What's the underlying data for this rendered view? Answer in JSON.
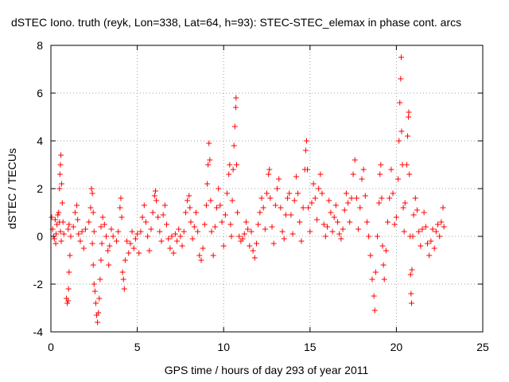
{
  "chart_data": {
    "type": "scatter",
    "title": "dSTEC Iono. truth (reyk, Lon=338, Lat=64, h=93): STEC-STEC_elemax in phase cont. arcs",
    "xlabel": "GPS time / hours of day 293 of year 2011",
    "ylabel": "dSTEC  / TECUs",
    "xlim": [
      0,
      25
    ],
    "ylim": [
      -4,
      8
    ],
    "xticks": [
      0,
      5,
      10,
      15,
      20,
      25
    ],
    "yticks": [
      -4,
      -2,
      0,
      2,
      4,
      6,
      8
    ],
    "grid": true,
    "marker": "+",
    "marker_color": "#ff0000",
    "series": [
      {
        "values_note_only_for_reader": "",
        "points": [
          [
            0.05,
            0.8
          ],
          [
            0.1,
            0.3
          ],
          [
            0.15,
            0.0
          ],
          [
            0.2,
            -0.1
          ],
          [
            0.3,
            0.1
          ],
          [
            0.35,
            0.5
          ],
          [
            0.4,
            0.9
          ],
          [
            0.45,
            1.0
          ],
          [
            0.5,
            0.6
          ],
          [
            0.55,
            0.2
          ],
          [
            0.6,
            -0.2
          ],
          [
            0.25,
            0.7
          ],
          [
            0.28,
            -0.3
          ],
          [
            0.5,
            2.0
          ],
          [
            0.52,
            2.6
          ],
          [
            0.55,
            3.0
          ],
          [
            0.58,
            3.4
          ],
          [
            0.62,
            2.2
          ],
          [
            0.66,
            1.4
          ],
          [
            0.7,
            0.6
          ],
          [
            0.75,
            0.1
          ],
          [
            0.9,
            -2.6
          ],
          [
            0.95,
            -2.8
          ],
          [
            1.0,
            -2.7
          ],
          [
            1.02,
            -2.2
          ],
          [
            1.05,
            -1.5
          ],
          [
            1.1,
            -0.8
          ],
          [
            1.15,
            0.0
          ],
          [
            1.0,
            0.3
          ],
          [
            1.05,
            0.5
          ],
          [
            1.3,
            0.4
          ],
          [
            1.4,
            1.0
          ],
          [
            1.5,
            1.3
          ],
          [
            1.55,
            0.7
          ],
          [
            1.6,
            0.1
          ],
          [
            1.7,
            -0.2
          ],
          [
            1.8,
            0.2
          ],
          [
            1.9,
            -0.5
          ],
          [
            2.0,
            0.3
          ],
          [
            2.2,
            0.6
          ],
          [
            2.3,
            1.2
          ],
          [
            2.35,
            2.0
          ],
          [
            2.4,
            1.8
          ],
          [
            2.45,
            1.0
          ],
          [
            2.5,
            0.2
          ],
          [
            2.4,
            -0.3
          ],
          [
            2.45,
            -1.2
          ],
          [
            2.5,
            -2.0
          ],
          [
            2.55,
            -2.3
          ],
          [
            2.6,
            -2.8
          ],
          [
            2.65,
            -3.3
          ],
          [
            2.7,
            -3.6
          ],
          [
            2.75,
            -3.2
          ],
          [
            2.8,
            -2.6
          ],
          [
            2.85,
            -1.8
          ],
          [
            2.9,
            -1.0
          ],
          [
            2.95,
            -0.3
          ],
          [
            2.9,
            0.4
          ],
          [
            3.0,
            0.8
          ],
          [
            3.1,
            0.5
          ],
          [
            3.2,
            0.0
          ],
          [
            3.3,
            -0.6
          ],
          [
            3.35,
            -1.2
          ],
          [
            3.4,
            -0.4
          ],
          [
            3.5,
            0.3
          ],
          [
            3.6,
            0.0
          ],
          [
            3.8,
            -0.2
          ],
          [
            3.9,
            0.2
          ],
          [
            4.0,
            1.2
          ],
          [
            4.05,
            1.6
          ],
          [
            4.1,
            0.8
          ],
          [
            4.15,
            -1.5
          ],
          [
            4.2,
            -1.8
          ],
          [
            4.25,
            -2.2
          ],
          [
            4.3,
            -1.0
          ],
          [
            4.4,
            -0.2
          ],
          [
            4.5,
            -0.7
          ],
          [
            4.6,
            -0.3
          ],
          [
            4.7,
            0.2
          ],
          [
            4.8,
            -0.5
          ],
          [
            4.9,
            -0.1
          ],
          [
            5.0,
            0.1
          ],
          [
            5.1,
            -0.7
          ],
          [
            5.2,
            0.2
          ],
          [
            5.3,
            0.8
          ],
          [
            5.4,
            1.3
          ],
          [
            5.5,
            0.6
          ],
          [
            5.6,
            0.0
          ],
          [
            5.7,
            -0.6
          ],
          [
            5.8,
            0.3
          ],
          [
            5.9,
            1.0
          ],
          [
            6.0,
            1.7
          ],
          [
            6.05,
            1.9
          ],
          [
            6.1,
            1.5
          ],
          [
            6.2,
            0.8
          ],
          [
            6.3,
            0.2
          ],
          [
            6.4,
            -0.2
          ],
          [
            6.5,
            0.9
          ],
          [
            6.6,
            1.3
          ],
          [
            6.7,
            0.5
          ],
          [
            6.8,
            -0.1
          ],
          [
            6.9,
            -0.5
          ],
          [
            7.0,
            0.0
          ],
          [
            7.1,
            -0.7
          ],
          [
            7.2,
            0.1
          ],
          [
            7.3,
            -0.2
          ],
          [
            7.4,
            0.3
          ],
          [
            7.5,
            0.0
          ],
          [
            7.6,
            -0.4
          ],
          [
            7.7,
            0.2
          ],
          [
            7.8,
            1.0
          ],
          [
            7.9,
            1.5
          ],
          [
            8.0,
            1.7
          ],
          [
            8.05,
            1.2
          ],
          [
            8.1,
            0.6
          ],
          [
            8.2,
            -0.1
          ],
          [
            8.3,
            0.4
          ],
          [
            8.4,
            1.0
          ],
          [
            8.5,
            0.2
          ],
          [
            8.6,
            -0.8
          ],
          [
            8.7,
            -1.0
          ],
          [
            8.8,
            -0.5
          ],
          [
            8.9,
            0.5
          ],
          [
            9.0,
            1.3
          ],
          [
            9.05,
            2.2
          ],
          [
            9.1,
            3.0
          ],
          [
            9.15,
            3.9
          ],
          [
            9.2,
            3.2
          ],
          [
            9.25,
            1.5
          ],
          [
            9.3,
            0.2
          ],
          [
            9.4,
            -0.8
          ],
          [
            9.5,
            0.4
          ],
          [
            9.6,
            1.2
          ],
          [
            9.7,
            2.0
          ],
          [
            9.8,
            1.3
          ],
          [
            9.9,
            0.6
          ],
          [
            10.0,
            -0.4
          ],
          [
            10.1,
            0.9
          ],
          [
            10.2,
            1.8
          ],
          [
            10.3,
            2.6
          ],
          [
            10.35,
            3.0
          ],
          [
            10.4,
            0.5
          ],
          [
            10.45,
            0.0
          ],
          [
            10.5,
            1.5
          ],
          [
            10.55,
            2.8
          ],
          [
            10.6,
            3.8
          ],
          [
            10.65,
            4.6
          ],
          [
            10.7,
            5.4
          ],
          [
            10.72,
            5.8
          ],
          [
            10.75,
            3.0
          ],
          [
            10.8,
            1.0
          ],
          [
            10.9,
            0.0
          ],
          [
            11.0,
            -0.2
          ],
          [
            11.1,
            -0.1
          ],
          [
            11.2,
            0.1
          ],
          [
            11.3,
            0.6
          ],
          [
            11.4,
            0.3
          ],
          [
            11.5,
            -0.4
          ],
          [
            11.6,
            0.2
          ],
          [
            11.7,
            -0.6
          ],
          [
            11.8,
            -0.9
          ],
          [
            11.9,
            -0.3
          ],
          [
            12.0,
            0.5
          ],
          [
            12.1,
            1.0
          ],
          [
            12.2,
            1.6
          ],
          [
            12.3,
            1.2
          ],
          [
            12.4,
            0.3
          ],
          [
            12.5,
            1.8
          ],
          [
            12.6,
            2.6
          ],
          [
            12.65,
            2.8
          ],
          [
            12.7,
            1.6
          ],
          [
            12.8,
            0.4
          ],
          [
            12.9,
            -0.3
          ],
          [
            13.0,
            1.3
          ],
          [
            13.1,
            2.0
          ],
          [
            13.2,
            2.4
          ],
          [
            13.3,
            1.2
          ],
          [
            13.4,
            0.2
          ],
          [
            13.5,
            -0.1
          ],
          [
            13.6,
            0.9
          ],
          [
            13.7,
            1.6
          ],
          [
            13.8,
            1.8
          ],
          [
            13.9,
            0.9
          ],
          [
            14.0,
            0.1
          ],
          [
            14.1,
            1.5
          ],
          [
            14.2,
            2.5
          ],
          [
            14.3,
            1.8
          ],
          [
            14.4,
            0.6
          ],
          [
            14.5,
            -0.2
          ],
          [
            14.6,
            1.2
          ],
          [
            14.7,
            2.8
          ],
          [
            14.75,
            3.6
          ],
          [
            14.8,
            4.0
          ],
          [
            14.85,
            2.8
          ],
          [
            14.9,
            1.2
          ],
          [
            15.0,
            0.2
          ],
          [
            15.1,
            1.4
          ],
          [
            15.2,
            2.2
          ],
          [
            15.3,
            1.6
          ],
          [
            15.4,
            0.7
          ],
          [
            15.5,
            2.0
          ],
          [
            15.6,
            2.6
          ],
          [
            15.7,
            1.8
          ],
          [
            15.8,
            0.5
          ],
          [
            15.9,
            0.0
          ],
          [
            16.0,
            0.4
          ],
          [
            16.1,
            1.5
          ],
          [
            16.2,
            1.0
          ],
          [
            16.3,
            0.2
          ],
          [
            16.4,
            0.8
          ],
          [
            16.5,
            1.3
          ],
          [
            16.6,
            0.6
          ],
          [
            16.7,
            0.1
          ],
          [
            16.8,
            -0.1
          ],
          [
            16.9,
            0.3
          ],
          [
            17.0,
            1.1
          ],
          [
            17.1,
            1.8
          ],
          [
            17.2,
            1.4
          ],
          [
            17.3,
            0.6
          ],
          [
            17.4,
            1.6
          ],
          [
            17.5,
            2.6
          ],
          [
            17.6,
            3.2
          ],
          [
            17.7,
            1.6
          ],
          [
            17.8,
            0.3
          ],
          [
            17.9,
            1.2
          ],
          [
            18.0,
            2.4
          ],
          [
            18.1,
            2.8
          ],
          [
            18.2,
            1.7
          ],
          [
            18.3,
            0.6
          ],
          [
            18.4,
            0.0
          ],
          [
            18.5,
            -0.8
          ],
          [
            18.6,
            -1.8
          ],
          [
            18.7,
            -2.5
          ],
          [
            18.75,
            -3.1
          ],
          [
            18.8,
            -1.5
          ],
          [
            18.9,
            0.0
          ],
          [
            19.0,
            1.4
          ],
          [
            19.05,
            2.6
          ],
          [
            19.1,
            3.0
          ],
          [
            19.15,
            1.6
          ],
          [
            19.2,
            -0.4
          ],
          [
            19.25,
            -1.2
          ],
          [
            19.3,
            -1.8
          ],
          [
            19.4,
            -0.6
          ],
          [
            19.5,
            0.6
          ],
          [
            19.6,
            1.6
          ],
          [
            19.7,
            2.8
          ],
          [
            19.8,
            1.8
          ],
          [
            19.9,
            0.5
          ],
          [
            20.0,
            0.8
          ],
          [
            20.1,
            2.4
          ],
          [
            20.15,
            4.0
          ],
          [
            20.2,
            5.6
          ],
          [
            20.25,
            6.6
          ],
          [
            20.28,
            7.5
          ],
          [
            20.3,
            4.4
          ],
          [
            20.35,
            3.0
          ],
          [
            20.4,
            1.2
          ],
          [
            20.45,
            0.2
          ],
          [
            20.5,
            1.4
          ],
          [
            20.6,
            3.0
          ],
          [
            20.65,
            4.2
          ],
          [
            20.7,
            5.0
          ],
          [
            20.72,
            5.2
          ],
          [
            20.75,
            2.6
          ],
          [
            20.8,
            0.0
          ],
          [
            20.82,
            -1.6
          ],
          [
            20.85,
            -2.4
          ],
          [
            20.88,
            -2.8
          ],
          [
            20.9,
            -1.4
          ],
          [
            20.95,
            0.0
          ],
          [
            21.0,
            0.9
          ],
          [
            21.1,
            1.6
          ],
          [
            21.2,
            1.1
          ],
          [
            21.3,
            0.2
          ],
          [
            21.4,
            -0.4
          ],
          [
            21.5,
            0.3
          ],
          [
            21.6,
            1.0
          ],
          [
            21.7,
            0.4
          ],
          [
            21.8,
            -0.3
          ],
          [
            21.9,
            -0.8
          ],
          [
            22.0,
            -0.2
          ],
          [
            22.1,
            0.3
          ],
          [
            22.2,
            -0.5
          ],
          [
            22.3,
            0.2
          ],
          [
            22.4,
            0.5
          ],
          [
            22.5,
            0.0
          ],
          [
            22.6,
            0.6
          ],
          [
            22.7,
            1.2
          ],
          [
            22.75,
            0.4
          ]
        ]
      }
    ]
  }
}
